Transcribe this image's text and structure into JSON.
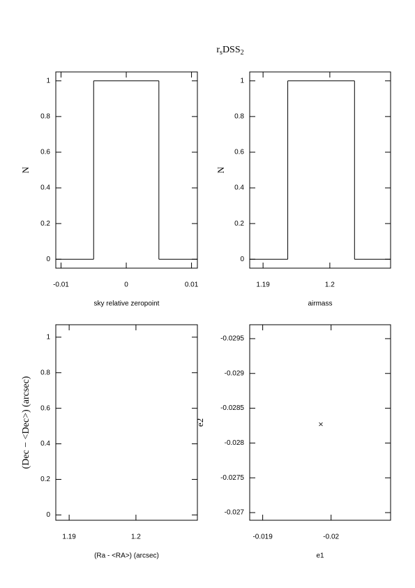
{
  "title": [
    "r",
    "s",
    "DSS",
    "2"
  ],
  "chart_data": [
    {
      "type": "histogram",
      "bins": [
        -0.0108,
        -0.005,
        0.005,
        0.0109
      ],
      "counts": [
        0,
        1,
        0
      ],
      "xlabel": "sky relative zeropoint",
      "ylabel": "N",
      "xlim": [
        -0.0108,
        0.0109
      ],
      "xticks": [
        -0.01,
        0,
        0.01
      ],
      "ylim": [
        -0.05,
        1.05
      ],
      "yticks": [
        0,
        0.2,
        0.4,
        0.6,
        0.8,
        1
      ],
      "color": "#000000"
    },
    {
      "type": "histogram",
      "bins": [
        1.188,
        1.1937,
        1.2037,
        1.2091
      ],
      "counts": [
        0,
        1,
        0
      ],
      "xlabel": "airmass",
      "ylabel": "N",
      "xlim": [
        1.188,
        1.2091
      ],
      "xticks": [
        1.19,
        1.2
      ],
      "ylim": [
        -0.05,
        1.05
      ],
      "yticks": [
        0,
        0.2,
        0.4,
        0.6,
        0.8,
        1
      ],
      "color": "#000000"
    },
    {
      "type": "scatter",
      "x": [],
      "y": [],
      "xlabel": "(Ra - <RA>) (arcsec)",
      "ylabel": "(Dec − <Dec>) (arcsec)",
      "xlim": [
        1.188,
        1.2092
      ],
      "xticks": [
        1.19,
        1.2
      ],
      "ylim": [
        -0.03,
        1.07
      ],
      "yticks": [
        0,
        0.2,
        0.4,
        0.6,
        0.8,
        1
      ],
      "color": "#000000"
    },
    {
      "type": "scatter",
      "x": [
        -0.01985
      ],
      "y": [
        -0.02827
      ],
      "xlabel": "e1",
      "ylabel": "e2",
      "xlim": [
        -0.01881,
        -0.02087
      ],
      "xticks": [
        -0.019,
        -0.02
      ],
      "ylim": [
        -0.02689,
        -0.0297
      ],
      "yticks": [
        -0.027,
        -0.0275,
        -0.028,
        -0.0285,
        -0.029,
        -0.0295
      ],
      "color": "#000000"
    }
  ]
}
